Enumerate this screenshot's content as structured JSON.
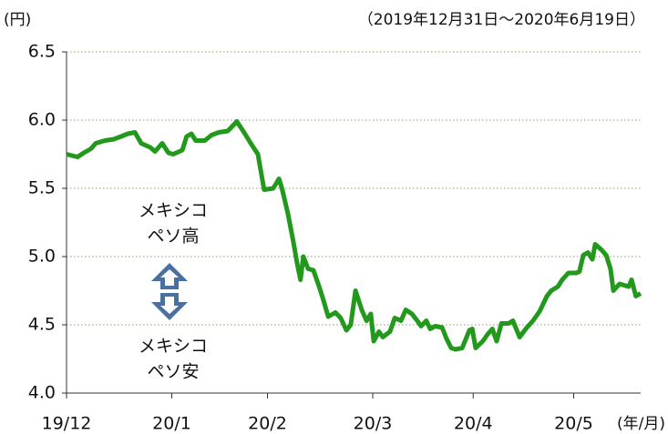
{
  "chart_data": {
    "type": "line",
    "unit_label": "(円)",
    "subtitle": "（2019年12月31日～2020年6月19日）",
    "x_unit_label": "(年/月)",
    "annotations": [
      [
        "メキシコ",
        "ペソ高"
      ],
      [
        "メキシコ",
        "ペソ安"
      ]
    ],
    "xlim": [
      0,
      120
    ],
    "xticks": [
      {
        "value": 0,
        "label": "19/12"
      },
      {
        "value": 22,
        "label": "20/1"
      },
      {
        "value": 42,
        "label": "20/2"
      },
      {
        "value": 64,
        "label": "20/3"
      },
      {
        "value": 85,
        "label": "20/4"
      },
      {
        "value": 106,
        "label": "20/5"
      }
    ],
    "ylim": [
      4,
      6.5
    ],
    "yticks": [
      {
        "value": 4,
        "label": "4.0"
      },
      4.5,
      {
        "value": 5,
        "label": "5.0"
      },
      5.5,
      {
        "value": 6,
        "label": "6.0"
      },
      6.5
    ],
    "grid": true,
    "series": [
      {
        "color": "#22991c",
        "x": [
          0,
          2.3,
          3.6,
          5.1,
          6.1,
          8.0,
          9.9,
          11.4,
          12.8,
          14.3,
          15.6,
          17.5,
          18.5,
          20.0,
          21.3,
          22.3,
          24.2,
          25.1,
          26.1,
          27.0,
          28.9,
          30.3,
          31.8,
          33.7,
          35.6,
          37.1,
          38.5,
          40.0,
          41.3,
          43.2,
          44.4,
          45.1,
          46.3,
          47.4,
          48.2,
          48.9,
          49.5,
          50.5,
          51.6,
          52.8,
          53.7,
          54.7,
          56.2,
          57.3,
          58.5,
          59.4,
          60.4,
          61.7,
          62.7,
          63.6,
          64.2,
          65.3,
          66.1,
          67.6,
          68.6,
          69.9,
          70.9,
          72.2,
          73.3,
          74.1,
          75.2,
          76.0,
          77.1,
          78.5,
          79.4,
          80.4,
          81.3,
          82.7,
          84.2,
          84.8,
          85.5,
          87.0,
          88.0,
          89.0,
          89.9,
          90.9,
          92.4,
          93.3,
          94.7,
          96.2,
          97.5,
          98.9,
          100.4,
          101.3,
          102.7,
          103.6,
          104.9,
          106.5,
          107.2,
          108.0,
          109.0,
          109.9,
          110.5,
          111.8,
          112.8,
          113.7,
          114.3,
          115.6,
          117.5,
          118.1,
          119.0,
          120
        ],
        "values": [
          5.75,
          5.73,
          5.76,
          5.79,
          5.83,
          5.85,
          5.86,
          5.88,
          5.9,
          5.91,
          5.83,
          5.8,
          5.77,
          5.83,
          5.76,
          5.75,
          5.78,
          5.88,
          5.9,
          5.85,
          5.85,
          5.89,
          5.91,
          5.92,
          5.99,
          5.91,
          5.83,
          5.75,
          5.49,
          5.5,
          5.57,
          5.49,
          5.31,
          5.11,
          4.95,
          4.83,
          5.0,
          4.91,
          4.9,
          4.78,
          4.68,
          4.56,
          4.59,
          4.55,
          4.46,
          4.5,
          4.75,
          4.61,
          4.53,
          4.58,
          4.38,
          4.45,
          4.41,
          4.45,
          4.55,
          4.53,
          4.61,
          4.58,
          4.53,
          4.49,
          4.53,
          4.47,
          4.49,
          4.48,
          4.4,
          4.33,
          4.32,
          4.33,
          4.46,
          4.47,
          4.33,
          4.38,
          4.43,
          4.47,
          4.38,
          4.51,
          4.51,
          4.53,
          4.41,
          4.48,
          4.53,
          4.6,
          4.71,
          4.75,
          4.78,
          4.83,
          4.88,
          4.88,
          4.89,
          5.01,
          5.03,
          4.98,
          5.09,
          5.05,
          5.01,
          4.91,
          4.75,
          4.8,
          4.78,
          4.83,
          4.71,
          4.73
        ]
      }
    ]
  }
}
